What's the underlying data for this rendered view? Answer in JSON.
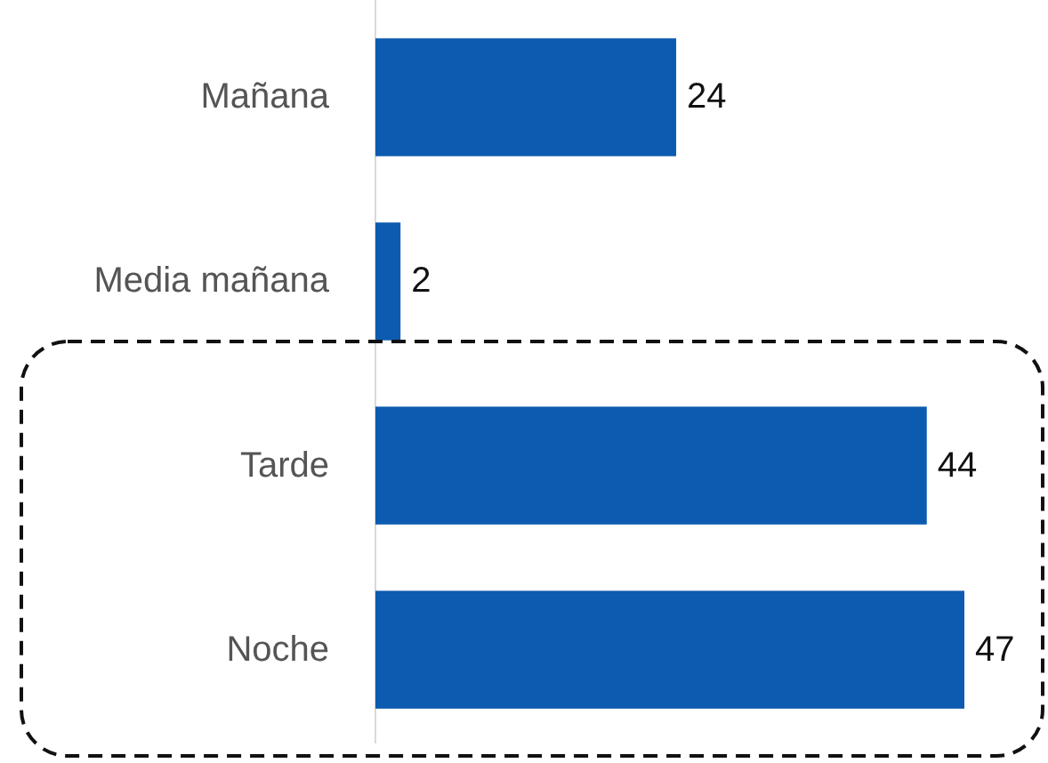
{
  "chart_data": {
    "type": "bar",
    "orientation": "horizontal",
    "categories": [
      "Mañana",
      "Media mañana",
      "Tarde",
      "Noche"
    ],
    "values": [
      24,
      2,
      44,
      47
    ],
    "color": "#0d5bb0",
    "data_labels": true
  }
}
